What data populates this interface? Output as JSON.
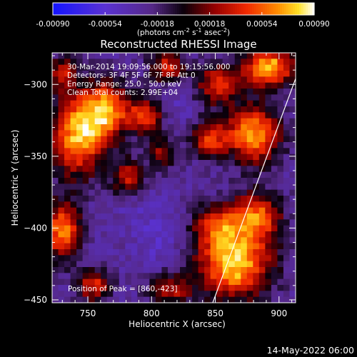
{
  "chart_data": {
    "type": "heatmap",
    "title": "Reconstructed RHESSI Image",
    "xlabel": "Heliocentric X (arcsec)",
    "ylabel": "Heliocentric Y (arcsec)",
    "xlim": [
      722,
      913
    ],
    "ylim": [
      -452,
      -278
    ],
    "xticks": [
      750,
      800,
      850,
      900
    ],
    "yticks": [
      -300,
      -350,
      -400,
      -450
    ],
    "colorbar": {
      "ticks": [
        "-0.00090",
        "-0.00054",
        "-0.00018",
        "0.00018",
        "0.00054",
        "0.00090"
      ],
      "range": [
        -0.0009,
        0.0009
      ],
      "label_main": "(photons cm",
      "label_exp1": "-2",
      "label_mid": " s",
      "label_exp2": "-1",
      "label_end": " asec",
      "label_exp3": "-2",
      "label_close": ")"
    },
    "annotations": [
      "30-Mar-2014 19:09:56.000 to 19:15:56.000",
      "Detectors: 3F 4F 5F 6F 7F 8F  Att 0",
      "Energy Range: 25.0 - 50.0 keV",
      "Clean     Total counts: 2.99E+04"
    ],
    "peak_label": "Position of Peak = [860,-423]",
    "peak": [
      860,
      -423
    ],
    "limb_line": [
      [
        848,
        -452
      ],
      [
        913,
        -296
      ]
    ],
    "sources": [
      {
        "x": 865,
        "y": -425,
        "value": 0.0009,
        "sx": 20,
        "sy": 17
      },
      {
        "x": 882,
        "y": -392,
        "value": 0.00062,
        "sx": 14,
        "sy": 12
      },
      {
        "x": 850,
        "y": -398,
        "value": 0.00042,
        "sx": 12,
        "sy": 10
      },
      {
        "x": 742,
        "y": -335,
        "value": 0.00082,
        "sx": 15,
        "sy": 20
      },
      {
        "x": 765,
        "y": -318,
        "value": 0.0007,
        "sx": 12,
        "sy": 14
      },
      {
        "x": 730,
        "y": -402,
        "value": 0.00075,
        "sx": 10,
        "sy": 14
      },
      {
        "x": 755,
        "y": -440,
        "value": 0.0005,
        "sx": 9,
        "sy": 8
      },
      {
        "x": 795,
        "y": -322,
        "value": 0.00055,
        "sx": 10,
        "sy": 9
      },
      {
        "x": 782,
        "y": -365,
        "value": 0.00042,
        "sx": 9,
        "sy": 9
      },
      {
        "x": 892,
        "y": -288,
        "value": 0.00085,
        "sx": 14,
        "sy": 10
      },
      {
        "x": 852,
        "y": -300,
        "value": 0.0005,
        "sx": 12,
        "sy": 10
      },
      {
        "x": 880,
        "y": -335,
        "value": 0.00078,
        "sx": 15,
        "sy": 14
      },
      {
        "x": 845,
        "y": -338,
        "value": 0.0005,
        "sx": 10,
        "sy": 9
      },
      {
        "x": 812,
        "y": -288,
        "value": 0.00045,
        "sx": 10,
        "sy": 8
      },
      {
        "x": 808,
        "y": -348,
        "value": 0.0003,
        "sx": 8,
        "sy": 8
      },
      {
        "x": 815,
        "y": -443,
        "value": 0.00035,
        "sx": 12,
        "sy": 8
      },
      {
        "x": 730,
        "y": -292,
        "value": 0.0004,
        "sx": 8,
        "sy": 8
      },
      {
        "x": 805,
        "y": -410,
        "value": -0.00035,
        "sx": 10,
        "sy": 12
      },
      {
        "x": 818,
        "y": -315,
        "value": -0.0003,
        "sx": 12,
        "sy": 12
      },
      {
        "x": 790,
        "y": -388,
        "value": -0.0003,
        "sx": 12,
        "sy": 12
      },
      {
        "x": 760,
        "y": -425,
        "value": -0.0002,
        "sx": 10,
        "sy": 8
      }
    ]
  },
  "timestamp": "14-May-2022 06:00"
}
